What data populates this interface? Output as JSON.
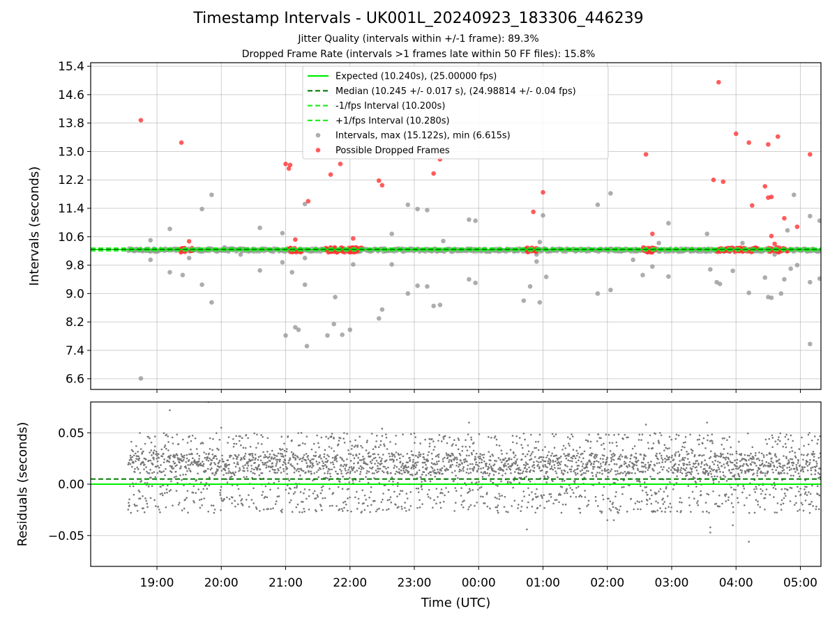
{
  "figure": {
    "title": "Timestamp Intervals - UK001L_20240923_183306_446239",
    "subtitle_1": "Jitter Quality (intervals within +/-1 frame): 89.3%",
    "subtitle_2": "Dropped Frame Rate (intervals >1 frames late within 50 FF files): 15.8%"
  },
  "chart_data": [
    {
      "type": "scatter",
      "ylabel": "Intervals (seconds)",
      "ylim": [
        6.3,
        15.5
      ],
      "xlim_hours": [
        17.97,
        29.32
      ],
      "grid": true,
      "legend_position": "top-center",
      "y_ticks": [
        "6.6",
        "7.4",
        "8.2",
        "9.0",
        "9.8",
        "10.6",
        "11.4",
        "12.2",
        "13.0",
        "13.8",
        "14.6",
        "15.4"
      ],
      "colors": {
        "expected": "#00ee00",
        "median": "#007a00",
        "minus_interval": "#22ee22",
        "plus_interval": "#22ee22",
        "intervals": "#999999",
        "dropped": "#ff3333"
      },
      "reference_lines": [
        {
          "name": "Expected (10.240s), (25.00000 fps)",
          "y": 10.24,
          "style": "solid",
          "color": "#00ee00"
        },
        {
          "name": "Median (10.245 +/- 0.017 s), (24.98814 +/- 0.04 fps)",
          "y": 10.245,
          "style": "dashed",
          "color": "#007a00"
        },
        {
          "name": "-1/fps Interval (10.200s)",
          "y": 10.2,
          "style": "dashed",
          "color": "#22ee22"
        },
        {
          "name": "+1/fps Interval (10.280s)",
          "y": 10.28,
          "style": "dashed",
          "color": "#22ee22"
        }
      ],
      "series": [
        {
          "name": "Intervals, max (15.122s), min (6.615s)",
          "points": [
            [
              18.75,
              6.61
            ],
            [
              18.58,
              10.22
            ],
            [
              18.9,
              9.95
            ],
            [
              18.9,
              10.5
            ],
            [
              19.2,
              9.6
            ],
            [
              19.2,
              10.82
            ],
            [
              19.4,
              9.52
            ],
            [
              19.5,
              10.0
            ],
            [
              19.7,
              9.25
            ],
            [
              19.7,
              11.38
            ],
            [
              19.85,
              8.75
            ],
            [
              19.85,
              11.78
            ],
            [
              20.05,
              10.3
            ],
            [
              20.3,
              10.1
            ],
            [
              20.6,
              9.65
            ],
            [
              20.6,
              10.85
            ],
            [
              20.95,
              9.88
            ],
            [
              20.95,
              10.7
            ],
            [
              21.1,
              9.6
            ],
            [
              21.2,
              7.98
            ],
            [
              21.15,
              8.05
            ],
            [
              21.0,
              7.82
            ],
            [
              21.3,
              9.25
            ],
            [
              21.3,
              11.52
            ],
            [
              21.33,
              7.52
            ],
            [
              21.3,
              10.0
            ],
            [
              21.65,
              7.82
            ],
            [
              21.75,
              8.14
            ],
            [
              21.77,
              8.9
            ],
            [
              21.88,
              7.84
            ],
            [
              22.0,
              7.98
            ],
            [
              22.05,
              9.82
            ],
            [
              22.45,
              8.3
            ],
            [
              22.5,
              8.55
            ],
            [
              22.65,
              10.68
            ],
            [
              22.65,
              9.82
            ],
            [
              22.9,
              11.5
            ],
            [
              22.9,
              9.0
            ],
            [
              23.05,
              9.22
            ],
            [
              23.05,
              11.38
            ],
            [
              23.2,
              9.2
            ],
            [
              23.2,
              11.35
            ],
            [
              23.3,
              8.65
            ],
            [
              23.4,
              8.68
            ],
            [
              23.45,
              10.48
            ],
            [
              23.85,
              11.08
            ],
            [
              23.85,
              9.4
            ],
            [
              23.95,
              11.05
            ],
            [
              23.95,
              9.3
            ],
            [
              24.7,
              8.8
            ],
            [
              24.8,
              9.2
            ],
            [
              24.9,
              9.9
            ],
            [
              24.9,
              10.1
            ],
            [
              24.95,
              10.45
            ],
            [
              24.95,
              8.75
            ],
            [
              25.0,
              11.2
            ],
            [
              25.05,
              9.47
            ],
            [
              25.85,
              9.0
            ],
            [
              25.85,
              11.5
            ],
            [
              26.05,
              11.82
            ],
            [
              26.05,
              9.1
            ],
            [
              26.4,
              9.95
            ],
            [
              26.55,
              9.52
            ],
            [
              26.7,
              9.76
            ],
            [
              26.8,
              10.42
            ],
            [
              26.95,
              9.48
            ],
            [
              26.95,
              10.98
            ],
            [
              27.55,
              10.68
            ],
            [
              27.6,
              9.68
            ],
            [
              27.7,
              9.32
            ],
            [
              27.75,
              9.27
            ],
            [
              27.95,
              9.64
            ],
            [
              28.1,
              10.42
            ],
            [
              28.2,
              9.02
            ],
            [
              28.45,
              9.45
            ],
            [
              28.5,
              8.9
            ],
            [
              28.55,
              8.88
            ],
            [
              28.6,
              10.1
            ],
            [
              28.7,
              9.0
            ],
            [
              28.75,
              9.4
            ],
            [
              28.8,
              10.78
            ],
            [
              28.85,
              9.7
            ],
            [
              28.9,
              11.78
            ],
            [
              28.95,
              9.8
            ],
            [
              29.15,
              9.32
            ],
            [
              29.15,
              11.18
            ],
            [
              29.15,
              7.58
            ],
            [
              29.3,
              9.42
            ],
            [
              29.3,
              11.05
            ]
          ]
        },
        {
          "name": "Possible Dropped Frames",
          "points": [
            [
              18.75,
              13.88
            ],
            [
              19.38,
              13.25
            ],
            [
              19.5,
              10.47
            ],
            [
              21.0,
              12.65
            ],
            [
              21.05,
              12.52
            ],
            [
              21.07,
              12.62
            ],
            [
              21.15,
              10.52
            ],
            [
              21.35,
              11.6
            ],
            [
              21.7,
              12.35
            ],
            [
              21.85,
              12.65
            ],
            [
              22.05,
              10.55
            ],
            [
              22.45,
              12.18
            ],
            [
              22.5,
              12.05
            ],
            [
              23.3,
              12.38
            ],
            [
              23.4,
              12.78
            ],
            [
              24.85,
              11.3
            ],
            [
              25.0,
              11.85
            ],
            [
              26.6,
              12.92
            ],
            [
              26.7,
              10.68
            ],
            [
              27.65,
              12.2
            ],
            [
              27.8,
              12.15
            ],
            [
              27.73,
              14.95
            ],
            [
              28.0,
              13.5
            ],
            [
              28.2,
              13.25
            ],
            [
              28.25,
              11.48
            ],
            [
              28.5,
              13.2
            ],
            [
              28.5,
              11.7
            ],
            [
              28.55,
              11.72
            ],
            [
              28.45,
              12.02
            ],
            [
              28.65,
              13.42
            ],
            [
              28.55,
              10.62
            ],
            [
              28.75,
              11.12
            ],
            [
              28.95,
              10.88
            ],
            [
              29.15,
              12.92
            ],
            [
              28.6,
              10.4
            ]
          ]
        }
      ]
    },
    {
      "type": "scatter",
      "xlabel": "Time (UTC)",
      "ylabel": "Residuals (seconds)",
      "ylim": [
        -0.08,
        0.08
      ],
      "xlim_hours": [
        17.97,
        29.32
      ],
      "grid": true,
      "y_ticks": [
        "−0.05",
        "0.00",
        "0.05"
      ],
      "x_ticks": [
        "19:00",
        "20:00",
        "21:00",
        "22:00",
        "23:00",
        "00:00",
        "01:00",
        "02:00",
        "03:00",
        "04:00",
        "05:00"
      ],
      "colors": {
        "residuals": "#777777",
        "expected": "#00ee00",
        "median": "#007a00"
      },
      "reference_lines": [
        {
          "name": "Expected",
          "y": 0.0,
          "style": "solid",
          "color": "#00ee00"
        },
        {
          "name": "Median",
          "y": 0.005,
          "style": "dashed",
          "color": "#007a00"
        }
      ],
      "residual_distribution": {
        "x_start_hours": 18.55,
        "x_end_hours": 29.32,
        "count": 3000,
        "core_range": [
          -0.028,
          0.05
        ],
        "dense_band": [
          0.01,
          0.03
        ]
      },
      "series": [
        {
          "name": "Residuals",
          "points": [
            [
              19.2,
              0.072
            ],
            [
              19.8,
              0.08
            ],
            [
              20.0,
              0.055
            ],
            [
              22.5,
              0.054
            ],
            [
              23.85,
              0.06
            ],
            [
              25.35,
              0.035
            ],
            [
              26.6,
              0.058
            ],
            [
              27.55,
              0.06
            ],
            [
              27.6,
              -0.042
            ],
            [
              27.6,
              -0.047
            ],
            [
              27.95,
              -0.04
            ],
            [
              28.2,
              -0.056
            ],
            [
              24.75,
              -0.044
            ],
            [
              26.0,
              -0.035
            ],
            [
              26.1,
              -0.035
            ]
          ]
        }
      ]
    }
  ]
}
